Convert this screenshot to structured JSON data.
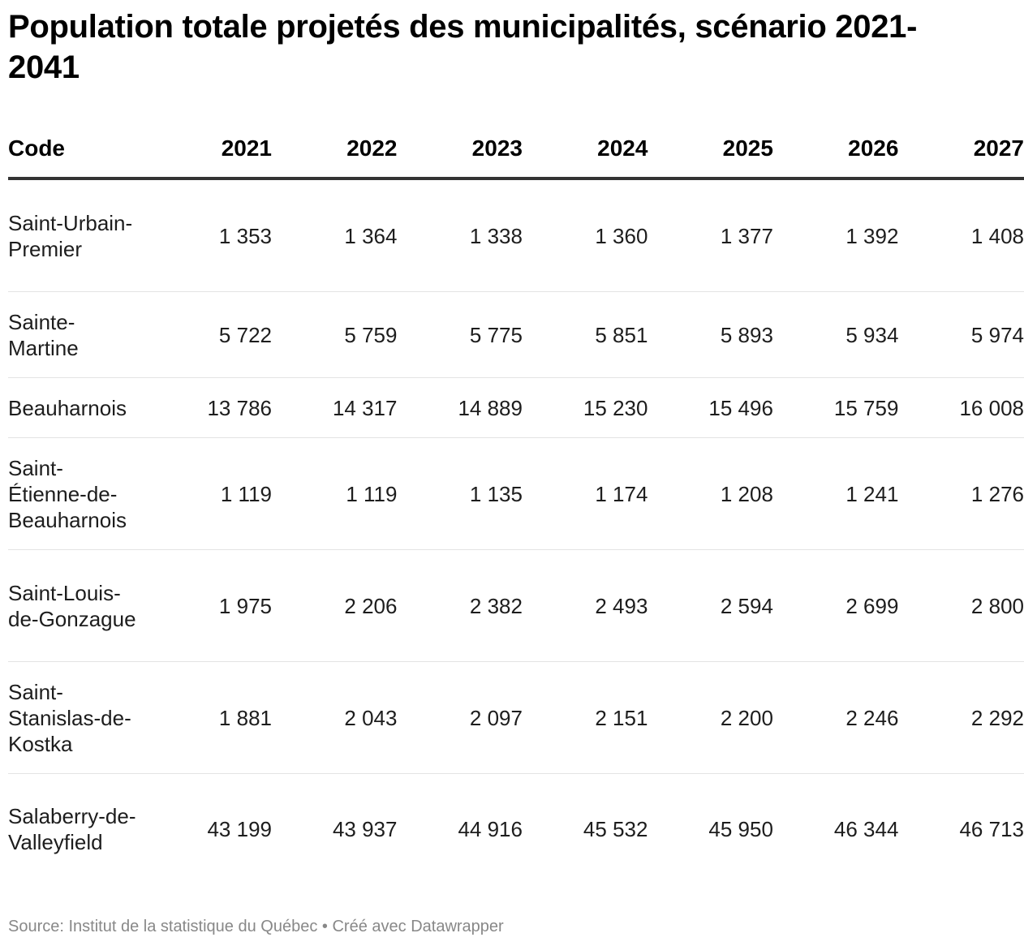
{
  "title": "Population totale projetés des municipalités, scénario 2021-2041",
  "footer": {
    "source": "Source: Institut de la statistique du Québec",
    "separator": "•",
    "credit": "Créé avec Datawrapper"
  },
  "chart_data": {
    "type": "table",
    "title": "Population totale projetés des municipalités, scénario 2021-2041",
    "columns": [
      "Code",
      "2021",
      "2022",
      "2023",
      "2024",
      "2025",
      "2026",
      "2027"
    ],
    "rows": [
      {
        "name": "Saint-Urbain-Premier",
        "values": [
          "1 353",
          "1 364",
          "1 338",
          "1 360",
          "1 377",
          "1 392",
          "1 408"
        ]
      },
      {
        "name": "Sainte-Martine",
        "values": [
          "5 722",
          "5 759",
          "5 775",
          "5 851",
          "5 893",
          "5 934",
          "5 974"
        ]
      },
      {
        "name": "Beauharnois",
        "values": [
          "13 786",
          "14 317",
          "14 889",
          "15 230",
          "15 496",
          "15 759",
          "16 008"
        ]
      },
      {
        "name": "Saint-Étienne-de-Beauharnois",
        "values": [
          "1 119",
          "1 119",
          "1 135",
          "1 174",
          "1 208",
          "1 241",
          "1 276"
        ]
      },
      {
        "name": "Saint-Louis-de-Gonzague",
        "values": [
          "1 975",
          "2 206",
          "2 382",
          "2 493",
          "2 594",
          "2 699",
          "2 800"
        ]
      },
      {
        "name": "Saint-Stanislas-de-Kostka",
        "values": [
          "1 881",
          "2 043",
          "2 097",
          "2 151",
          "2 200",
          "2 246",
          "2 292"
        ]
      },
      {
        "name": "Salaberry-de-Valleyfield",
        "values": [
          "43 199",
          "43 937",
          "44 916",
          "45 532",
          "45 950",
          "46 344",
          "46 713"
        ]
      }
    ]
  }
}
